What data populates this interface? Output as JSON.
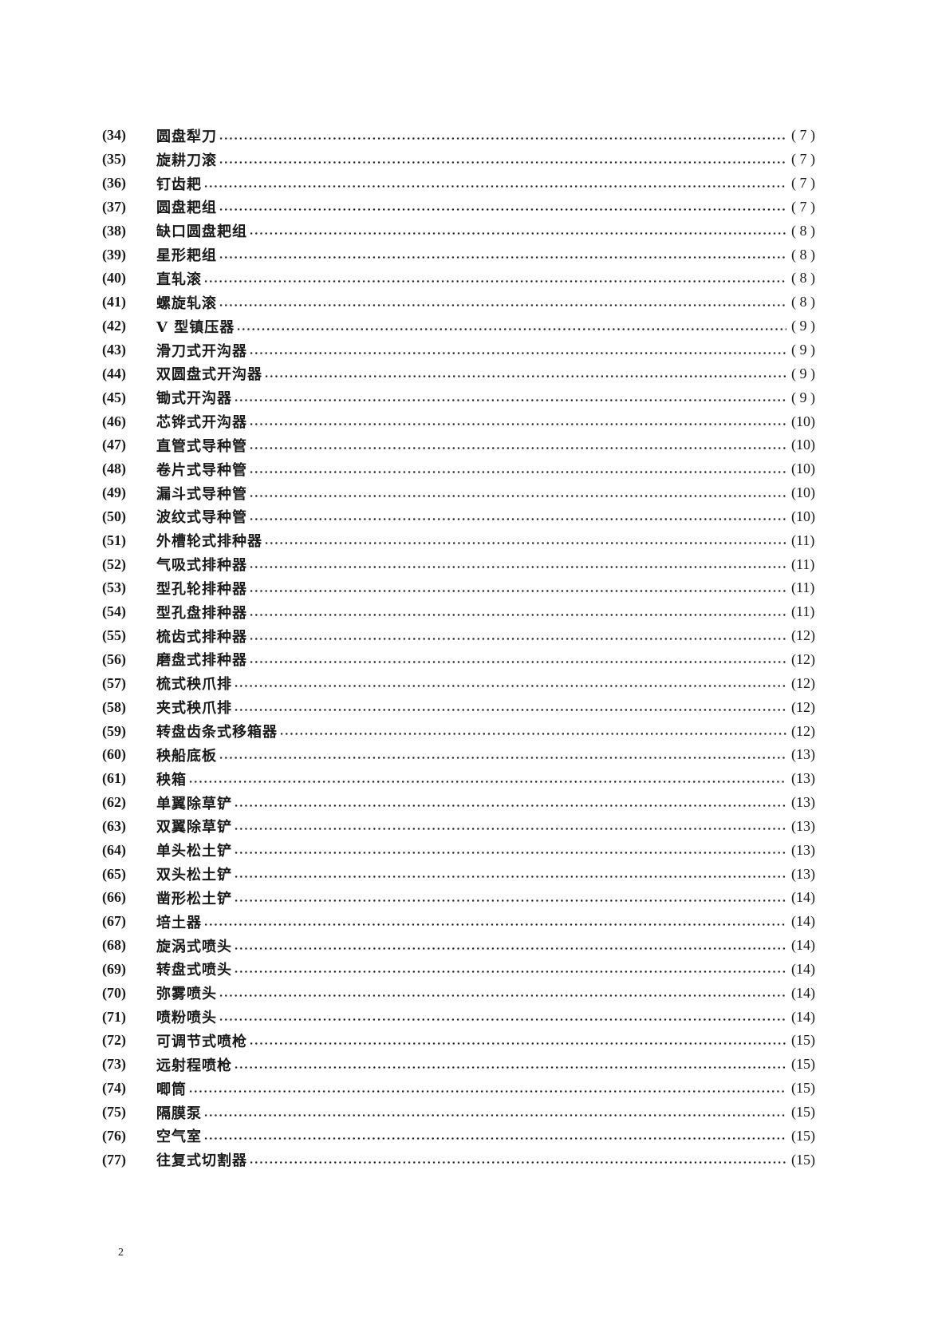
{
  "entries": [
    {
      "num": "(34)",
      "title": "圆盘犁刀",
      "page": "( 7 )"
    },
    {
      "num": "(35)",
      "title": "旋耕刀滚",
      "page": "( 7 )"
    },
    {
      "num": "(36)",
      "title": "钉齿耙",
      "page": "( 7 )"
    },
    {
      "num": "(37)",
      "title": "圆盘耙组",
      "page": "( 7 )"
    },
    {
      "num": "(38)",
      "title": "缺口圆盘耙组",
      "page": "( 8 )"
    },
    {
      "num": "(39)",
      "title": "星形耙组",
      "page": "( 8 )"
    },
    {
      "num": "(40)",
      "title": "直轧滚",
      "page": "( 8 )"
    },
    {
      "num": "(41)",
      "title": "螺旋轧滚",
      "page": "( 8 )"
    },
    {
      "num": "(42)",
      "title": "V 型镇压器",
      "page": "( 9 )"
    },
    {
      "num": "(43)",
      "title": "滑刀式开沟器",
      "page": "( 9 )"
    },
    {
      "num": "(44)",
      "title": "双圆盘式开沟器",
      "page": "( 9 )"
    },
    {
      "num": "(45)",
      "title": "锄式开沟器",
      "page": "( 9 )"
    },
    {
      "num": "(46)",
      "title": "芯铧式开沟器",
      "page": "(10)"
    },
    {
      "num": "(47)",
      "title": "直管式导种管",
      "page": "(10)"
    },
    {
      "num": "(48)",
      "title": "卷片式导种管",
      "page": "(10)"
    },
    {
      "num": "(49)",
      "title": "漏斗式导种管",
      "page": "(10)"
    },
    {
      "num": "(50)",
      "title": "波纹式导种管",
      "page": "(10)"
    },
    {
      "num": "(51)",
      "title": "外槽轮式排种器",
      "page": "(11)"
    },
    {
      "num": "(52)",
      "title": "气吸式排种器",
      "page": "(11)"
    },
    {
      "num": "(53)",
      "title": "型孔轮排种器",
      "page": "(11)"
    },
    {
      "num": "(54)",
      "title": "型孔盘排种器",
      "page": "(11)"
    },
    {
      "num": "(55)",
      "title": "梳齿式排种器",
      "page": "(12)"
    },
    {
      "num": "(56)",
      "title": "磨盘式排种器",
      "page": "(12)"
    },
    {
      "num": "(57)",
      "title": "梳式秧爪排",
      "page": "(12)"
    },
    {
      "num": "(58)",
      "title": "夹式秧爪排",
      "page": "(12)"
    },
    {
      "num": "(59)",
      "title": "转盘齿条式移箱器",
      "page": "(12)"
    },
    {
      "num": "(60)",
      "title": "秧船底板",
      "page": "(13)"
    },
    {
      "num": "(61)",
      "title": "秧箱",
      "page": "(13)"
    },
    {
      "num": "(62)",
      "title": "单翼除草铲",
      "page": "(13)"
    },
    {
      "num": "(63)",
      "title": "双翼除草铲",
      "page": "(13)"
    },
    {
      "num": "(64)",
      "title": "单头松土铲",
      "page": "(13)"
    },
    {
      "num": "(65)",
      "title": "双头松土铲",
      "page": "(13)"
    },
    {
      "num": "(66)",
      "title": "凿形松土铲",
      "page": "(14)"
    },
    {
      "num": "(67)",
      "title": "培土器",
      "page": "(14)"
    },
    {
      "num": "(68)",
      "title": "旋涡式喷头",
      "page": "(14)"
    },
    {
      "num": "(69)",
      "title": "转盘式喷头",
      "page": "(14)"
    },
    {
      "num": "(70)",
      "title": "弥雾喷头",
      "page": "(14)"
    },
    {
      "num": "(71)",
      "title": "喷粉喷头",
      "page": "(14)"
    },
    {
      "num": "(72)",
      "title": "可调节式喷枪",
      "page": "(15)"
    },
    {
      "num": "(73)",
      "title": "远射程喷枪",
      "page": "(15)"
    },
    {
      "num": "(74)",
      "title": "唧筒",
      "page": "(15)"
    },
    {
      "num": "(75)",
      "title": "隔膜泵",
      "page": "(15)"
    },
    {
      "num": "(76)",
      "title": "空气室",
      "page": "(15)"
    },
    {
      "num": "(77)",
      "title": "往复式切割器",
      "page": "(15)"
    }
  ],
  "page_number": "2"
}
